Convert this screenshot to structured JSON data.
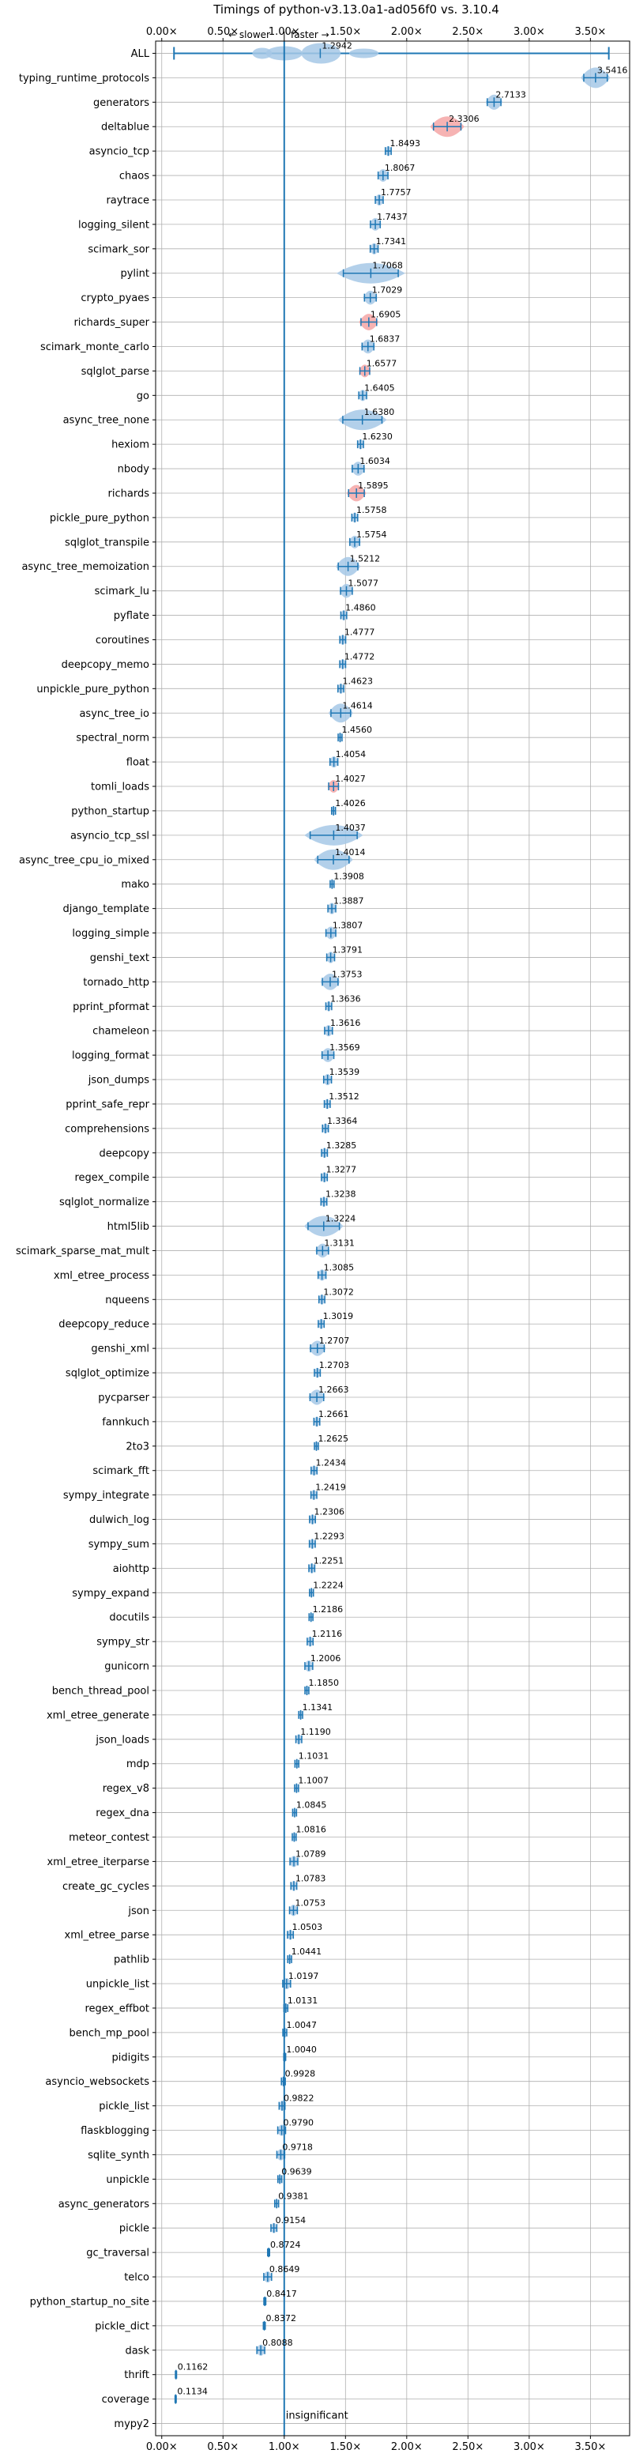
{
  "chart_data": {
    "type": "violin",
    "title": "Timings of python-v3.13.0a1-ad056f0 vs. 3.10.4",
    "annotations": {
      "slower": "← slower",
      "faster": "faster →",
      "insignificant": "insignificant"
    },
    "xlim": [
      -0.05,
      3.82
    ],
    "ticks": [
      0.0,
      0.5,
      1.0,
      1.5,
      2.0,
      2.5,
      3.0,
      3.5
    ],
    "tick_labels": [
      "0.00×",
      "0.50×",
      "1.00×",
      "1.50×",
      "2.00×",
      "2.50×",
      "3.00×",
      "3.50×"
    ],
    "reference_line": 1.0,
    "grid": true,
    "colors": {
      "primary": "#1f77b4",
      "fill": "#a6c8e6",
      "highlight": "#f4a6a6",
      "grid": "#b0b0b0",
      "ref": "#1f77b4"
    },
    "benchmarks": [
      {
        "name": "ALL",
        "value": 1.2942,
        "label": "1.2942",
        "lo": 0.1,
        "hi": 3.65,
        "spread": 0.0,
        "wide": true
      },
      {
        "name": "typing_runtime_protocols",
        "value": 3.5416,
        "label": "3.5416",
        "spread": 0.12
      },
      {
        "name": "generators",
        "value": 2.7133,
        "label": "2.7133",
        "spread": 0.07
      },
      {
        "name": "deltablue",
        "value": 2.3306,
        "label": "2.3306",
        "spread": 0.14,
        "hl": true
      },
      {
        "name": "asyncio_tcp",
        "value": 1.8493,
        "label": "1.8493",
        "spread": 0.03
      },
      {
        "name": "chaos",
        "value": 1.8067,
        "label": "1.8067",
        "spread": 0.05
      },
      {
        "name": "raytrace",
        "value": 1.7757,
        "label": "1.7757",
        "spread": 0.04
      },
      {
        "name": "logging_silent",
        "value": 1.7437,
        "label": "1.7437",
        "spread": 0.05
      },
      {
        "name": "scimark_sor",
        "value": 1.7341,
        "label": "1.7341",
        "spread": 0.04
      },
      {
        "name": "pylint",
        "value": 1.7068,
        "label": "1.7068",
        "spread": 0.28
      },
      {
        "name": "crypto_pyaes",
        "value": 1.7029,
        "label": "1.7029",
        "spread": 0.06
      },
      {
        "name": "richards_super",
        "value": 1.6905,
        "label": "1.6905",
        "spread": 0.08,
        "hl": true
      },
      {
        "name": "scimark_monte_carlo",
        "value": 1.6837,
        "label": "1.6837",
        "spread": 0.06
      },
      {
        "name": "sqlglot_parse",
        "value": 1.6577,
        "label": "1.6577",
        "spread": 0.05,
        "hl": true
      },
      {
        "name": "go",
        "value": 1.6405,
        "label": "1.6405",
        "spread": 0.04
      },
      {
        "name": "async_tree_none",
        "value": 1.638,
        "label": "1.6380",
        "spread": 0.2
      },
      {
        "name": "hexiom",
        "value": 1.623,
        "label": "1.6230",
        "spread": 0.03
      },
      {
        "name": "nbody",
        "value": 1.6034,
        "label": "1.6034",
        "spread": 0.06
      },
      {
        "name": "richards",
        "value": 1.5895,
        "label": "1.5895",
        "spread": 0.08,
        "hl": true
      },
      {
        "name": "pickle_pure_python",
        "value": 1.5758,
        "label": "1.5758",
        "spread": 0.03
      },
      {
        "name": "sqlglot_transpile",
        "value": 1.5754,
        "label": "1.5754",
        "spread": 0.05
      },
      {
        "name": "async_tree_memoization",
        "value": 1.5212,
        "label": "1.5212",
        "spread": 0.1
      },
      {
        "name": "scimark_lu",
        "value": 1.5077,
        "label": "1.5077",
        "spread": 0.06
      },
      {
        "name": "pyflate",
        "value": 1.486,
        "label": "1.4860",
        "spread": 0.03
      },
      {
        "name": "coroutines",
        "value": 1.4777,
        "label": "1.4777",
        "spread": 0.03
      },
      {
        "name": "deepcopy_memo",
        "value": 1.4772,
        "label": "1.4772",
        "spread": 0.03
      },
      {
        "name": "unpickle_pure_python",
        "value": 1.4623,
        "label": "1.4623",
        "spread": 0.03
      },
      {
        "name": "async_tree_io",
        "value": 1.4614,
        "label": "1.4614",
        "spread": 0.1
      },
      {
        "name": "spectral_norm",
        "value": 1.456,
        "label": "1.4560",
        "spread": 0.02
      },
      {
        "name": "float",
        "value": 1.4054,
        "label": "1.4054",
        "spread": 0.04
      },
      {
        "name": "tomli_loads",
        "value": 1.4027,
        "label": "1.4027",
        "spread": 0.05,
        "hl": true
      },
      {
        "name": "python_startup",
        "value": 1.4026,
        "label": "1.4026",
        "spread": 0.02
      },
      {
        "name": "asyncio_tcp_ssl",
        "value": 1.4037,
        "label": "1.4037",
        "spread": 0.24
      },
      {
        "name": "async_tree_cpu_io_mixed",
        "value": 1.4014,
        "label": "1.4014",
        "spread": 0.16
      },
      {
        "name": "mako",
        "value": 1.3908,
        "label": "1.3908",
        "spread": 0.02
      },
      {
        "name": "django_template",
        "value": 1.3887,
        "label": "1.3887",
        "spread": 0.04
      },
      {
        "name": "logging_simple",
        "value": 1.3807,
        "label": "1.3807",
        "spread": 0.05
      },
      {
        "name": "genshi_text",
        "value": 1.3791,
        "label": "1.3791",
        "spread": 0.04
      },
      {
        "name": "tornado_http",
        "value": 1.3753,
        "label": "1.3753",
        "spread": 0.08
      },
      {
        "name": "pprint_pformat",
        "value": 1.3636,
        "label": "1.3636",
        "spread": 0.03
      },
      {
        "name": "chameleon",
        "value": 1.3616,
        "label": "1.3616",
        "spread": 0.04
      },
      {
        "name": "logging_format",
        "value": 1.3569,
        "label": "1.3569",
        "spread": 0.06
      },
      {
        "name": "json_dumps",
        "value": 1.3539,
        "label": "1.3539",
        "spread": 0.04
      },
      {
        "name": "pprint_safe_repr",
        "value": 1.3512,
        "label": "1.3512",
        "spread": 0.03
      },
      {
        "name": "comprehensions",
        "value": 1.3364,
        "label": "1.3364",
        "spread": 0.03
      },
      {
        "name": "deepcopy",
        "value": 1.3285,
        "label": "1.3285",
        "spread": 0.03
      },
      {
        "name": "regex_compile",
        "value": 1.3277,
        "label": "1.3277",
        "spread": 0.03
      },
      {
        "name": "sqlglot_normalize",
        "value": 1.3238,
        "label": "1.3238",
        "spread": 0.03
      },
      {
        "name": "html5lib",
        "value": 1.3224,
        "label": "1.3224",
        "spread": 0.16
      },
      {
        "name": "scimark_sparse_mat_mult",
        "value": 1.3131,
        "label": "1.3131",
        "spread": 0.06
      },
      {
        "name": "xml_etree_process",
        "value": 1.3085,
        "label": "1.3085",
        "spread": 0.04
      },
      {
        "name": "nqueens",
        "value": 1.3072,
        "label": "1.3072",
        "spread": 0.03
      },
      {
        "name": "deepcopy_reduce",
        "value": 1.3019,
        "label": "1.3019",
        "spread": 0.03
      },
      {
        "name": "genshi_xml",
        "value": 1.2707,
        "label": "1.2707",
        "spread": 0.07
      },
      {
        "name": "sqlglot_optimize",
        "value": 1.2703,
        "label": "1.2703",
        "spread": 0.03
      },
      {
        "name": "pycparser",
        "value": 1.2663,
        "label": "1.2663",
        "spread": 0.07
      },
      {
        "name": "fannkuch",
        "value": 1.2661,
        "label": "1.2661",
        "spread": 0.03
      },
      {
        "name": "2to3",
        "value": 1.2625,
        "label": "1.2625",
        "spread": 0.02
      },
      {
        "name": "scimark_fft",
        "value": 1.2434,
        "label": "1.2434",
        "spread": 0.03
      },
      {
        "name": "sympy_integrate",
        "value": 1.2419,
        "label": "1.2419",
        "spread": 0.03
      },
      {
        "name": "dulwich_log",
        "value": 1.2306,
        "label": "1.2306",
        "spread": 0.03
      },
      {
        "name": "sympy_sum",
        "value": 1.2293,
        "label": "1.2293",
        "spread": 0.03
      },
      {
        "name": "aiohttp",
        "value": 1.2251,
        "label": "1.2251",
        "spread": 0.03
      },
      {
        "name": "sympy_expand",
        "value": 1.2224,
        "label": "1.2224",
        "spread": 0.02
      },
      {
        "name": "docutils",
        "value": 1.2186,
        "label": "1.2186",
        "spread": 0.02
      },
      {
        "name": "sympy_str",
        "value": 1.2116,
        "label": "1.2116",
        "spread": 0.03
      },
      {
        "name": "gunicorn",
        "value": 1.2006,
        "label": "1.2006",
        "spread": 0.04
      },
      {
        "name": "bench_thread_pool",
        "value": 1.185,
        "label": "1.1850",
        "spread": 0.02
      },
      {
        "name": "xml_etree_generate",
        "value": 1.1341,
        "label": "1.1341",
        "spread": 0.02
      },
      {
        "name": "json_loads",
        "value": 1.119,
        "label": "1.1190",
        "spread": 0.03
      },
      {
        "name": "mdp",
        "value": 1.1031,
        "label": "1.1031",
        "spread": 0.02
      },
      {
        "name": "regex_v8",
        "value": 1.1007,
        "label": "1.1007",
        "spread": 0.02
      },
      {
        "name": "regex_dna",
        "value": 1.0845,
        "label": "1.0845",
        "spread": 0.02
      },
      {
        "name": "meteor_contest",
        "value": 1.0816,
        "label": "1.0816",
        "spread": 0.02
      },
      {
        "name": "xml_etree_iterparse",
        "value": 1.0789,
        "label": "1.0789",
        "spread": 0.04
      },
      {
        "name": "create_gc_cycles",
        "value": 1.0783,
        "label": "1.0783",
        "spread": 0.03
      },
      {
        "name": "json",
        "value": 1.0753,
        "label": "1.0753",
        "spread": 0.04
      },
      {
        "name": "xml_etree_parse",
        "value": 1.0503,
        "label": "1.0503",
        "spread": 0.03
      },
      {
        "name": "pathlib",
        "value": 1.0441,
        "label": "1.0441",
        "spread": 0.02
      },
      {
        "name": "unpickle_list",
        "value": 1.0197,
        "label": "1.0197",
        "spread": 0.04
      },
      {
        "name": "regex_effbot",
        "value": 1.0131,
        "label": "1.0131",
        "spread": 0.02
      },
      {
        "name": "bench_mp_pool",
        "value": 1.0047,
        "label": "1.0047",
        "spread": 0.02
      },
      {
        "name": "pidigits",
        "value": 1.004,
        "label": "1.0040",
        "spread": 0.01
      },
      {
        "name": "asyncio_websockets",
        "value": 0.9928,
        "label": "0.9928",
        "spread": 0.02
      },
      {
        "name": "pickle_list",
        "value": 0.9822,
        "label": "0.9822",
        "spread": 0.03
      },
      {
        "name": "flaskblogging",
        "value": 0.979,
        "label": "0.9790",
        "spread": 0.04
      },
      {
        "name": "sqlite_synth",
        "value": 0.9718,
        "label": "0.9718",
        "spread": 0.04
      },
      {
        "name": "unpickle",
        "value": 0.9639,
        "label": "0.9639",
        "spread": 0.02
      },
      {
        "name": "async_generators",
        "value": 0.9381,
        "label": "0.9381",
        "spread": 0.02
      },
      {
        "name": "pickle",
        "value": 0.9154,
        "label": "0.9154",
        "spread": 0.03
      },
      {
        "name": "gc_traversal",
        "value": 0.8724,
        "label": "0.8724",
        "spread": 0.01
      },
      {
        "name": "telco",
        "value": 0.8649,
        "label": "0.8649",
        "spread": 0.04
      },
      {
        "name": "python_startup_no_site",
        "value": 0.8417,
        "label": "0.8417",
        "spread": 0.01
      },
      {
        "name": "pickle_dict",
        "value": 0.8372,
        "label": "0.8372",
        "spread": 0.01
      },
      {
        "name": "dask",
        "value": 0.8088,
        "label": "0.8088",
        "spread": 0.04
      },
      {
        "name": "thrift",
        "value": 0.1162,
        "label": "0.1162",
        "spread": 0.005
      },
      {
        "name": "coverage",
        "value": 0.1134,
        "label": "0.1134",
        "spread": 0.005
      },
      {
        "name": "mypy2",
        "value": null,
        "label": "",
        "spread": 0
      }
    ]
  }
}
